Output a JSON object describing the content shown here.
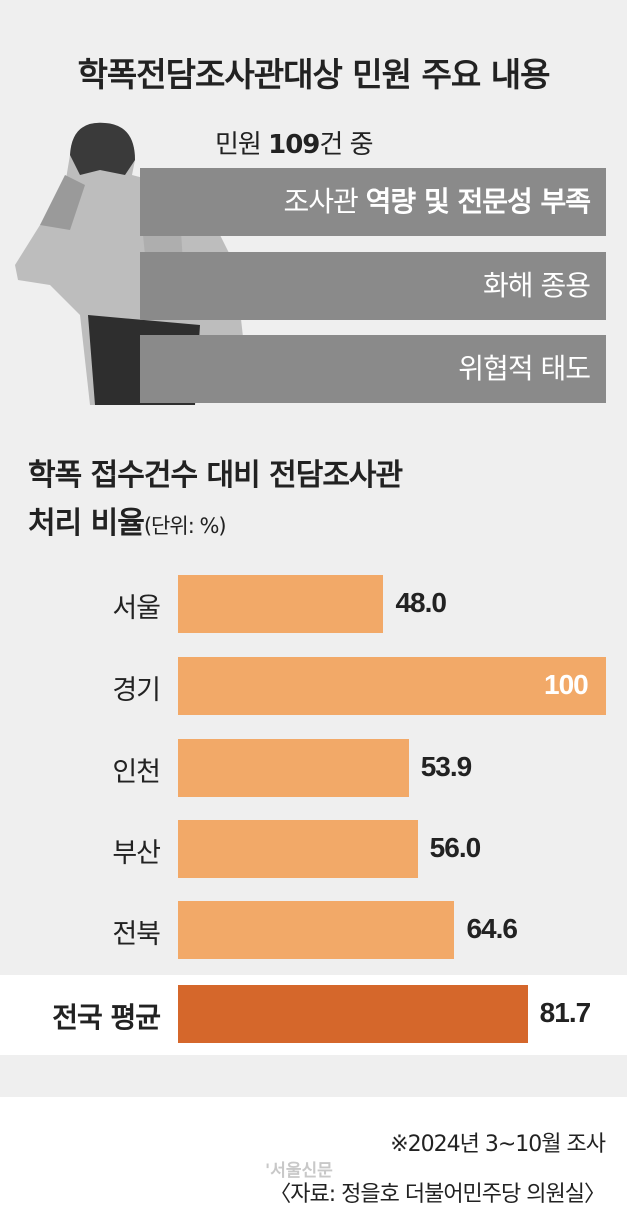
{
  "header": {
    "title": "학폭전담조사관대상 민원 주요 내용"
  },
  "complaints": {
    "count_prefix": "민원 ",
    "count_number": "109",
    "count_suffix": "건 중",
    "items": [
      {
        "light": "조사관 ",
        "bold": "역량 및 전문성 부족"
      },
      {
        "light": "화해 종용",
        "bold": ""
      },
      {
        "light": "위협적 태도",
        "bold": ""
      }
    ],
    "box_color": "#8a8a8a"
  },
  "chart_data": {
    "type": "bar",
    "orientation": "horizontal",
    "title_line1": "학폭 접수건수 대비 전담조사관",
    "title_line2": "처리 비율",
    "unit": "(단위: %)",
    "categories": [
      "서울",
      "경기",
      "인천",
      "부산",
      "전북",
      "전국 평균"
    ],
    "values": [
      48.0,
      100,
      53.9,
      56.0,
      64.6,
      81.7
    ],
    "value_labels": [
      "48.0",
      "100",
      "53.9",
      "56.0",
      "64.6",
      "81.7"
    ],
    "xlim": [
      0,
      100
    ],
    "colors": {
      "region": "#f2a968",
      "average": "#d5672b"
    }
  },
  "footer": {
    "note": "※2024년 3~10월 조사",
    "source": "〈자료: 정을호 더불어민주당 의원실〉",
    "watermark": "'서울신문"
  }
}
